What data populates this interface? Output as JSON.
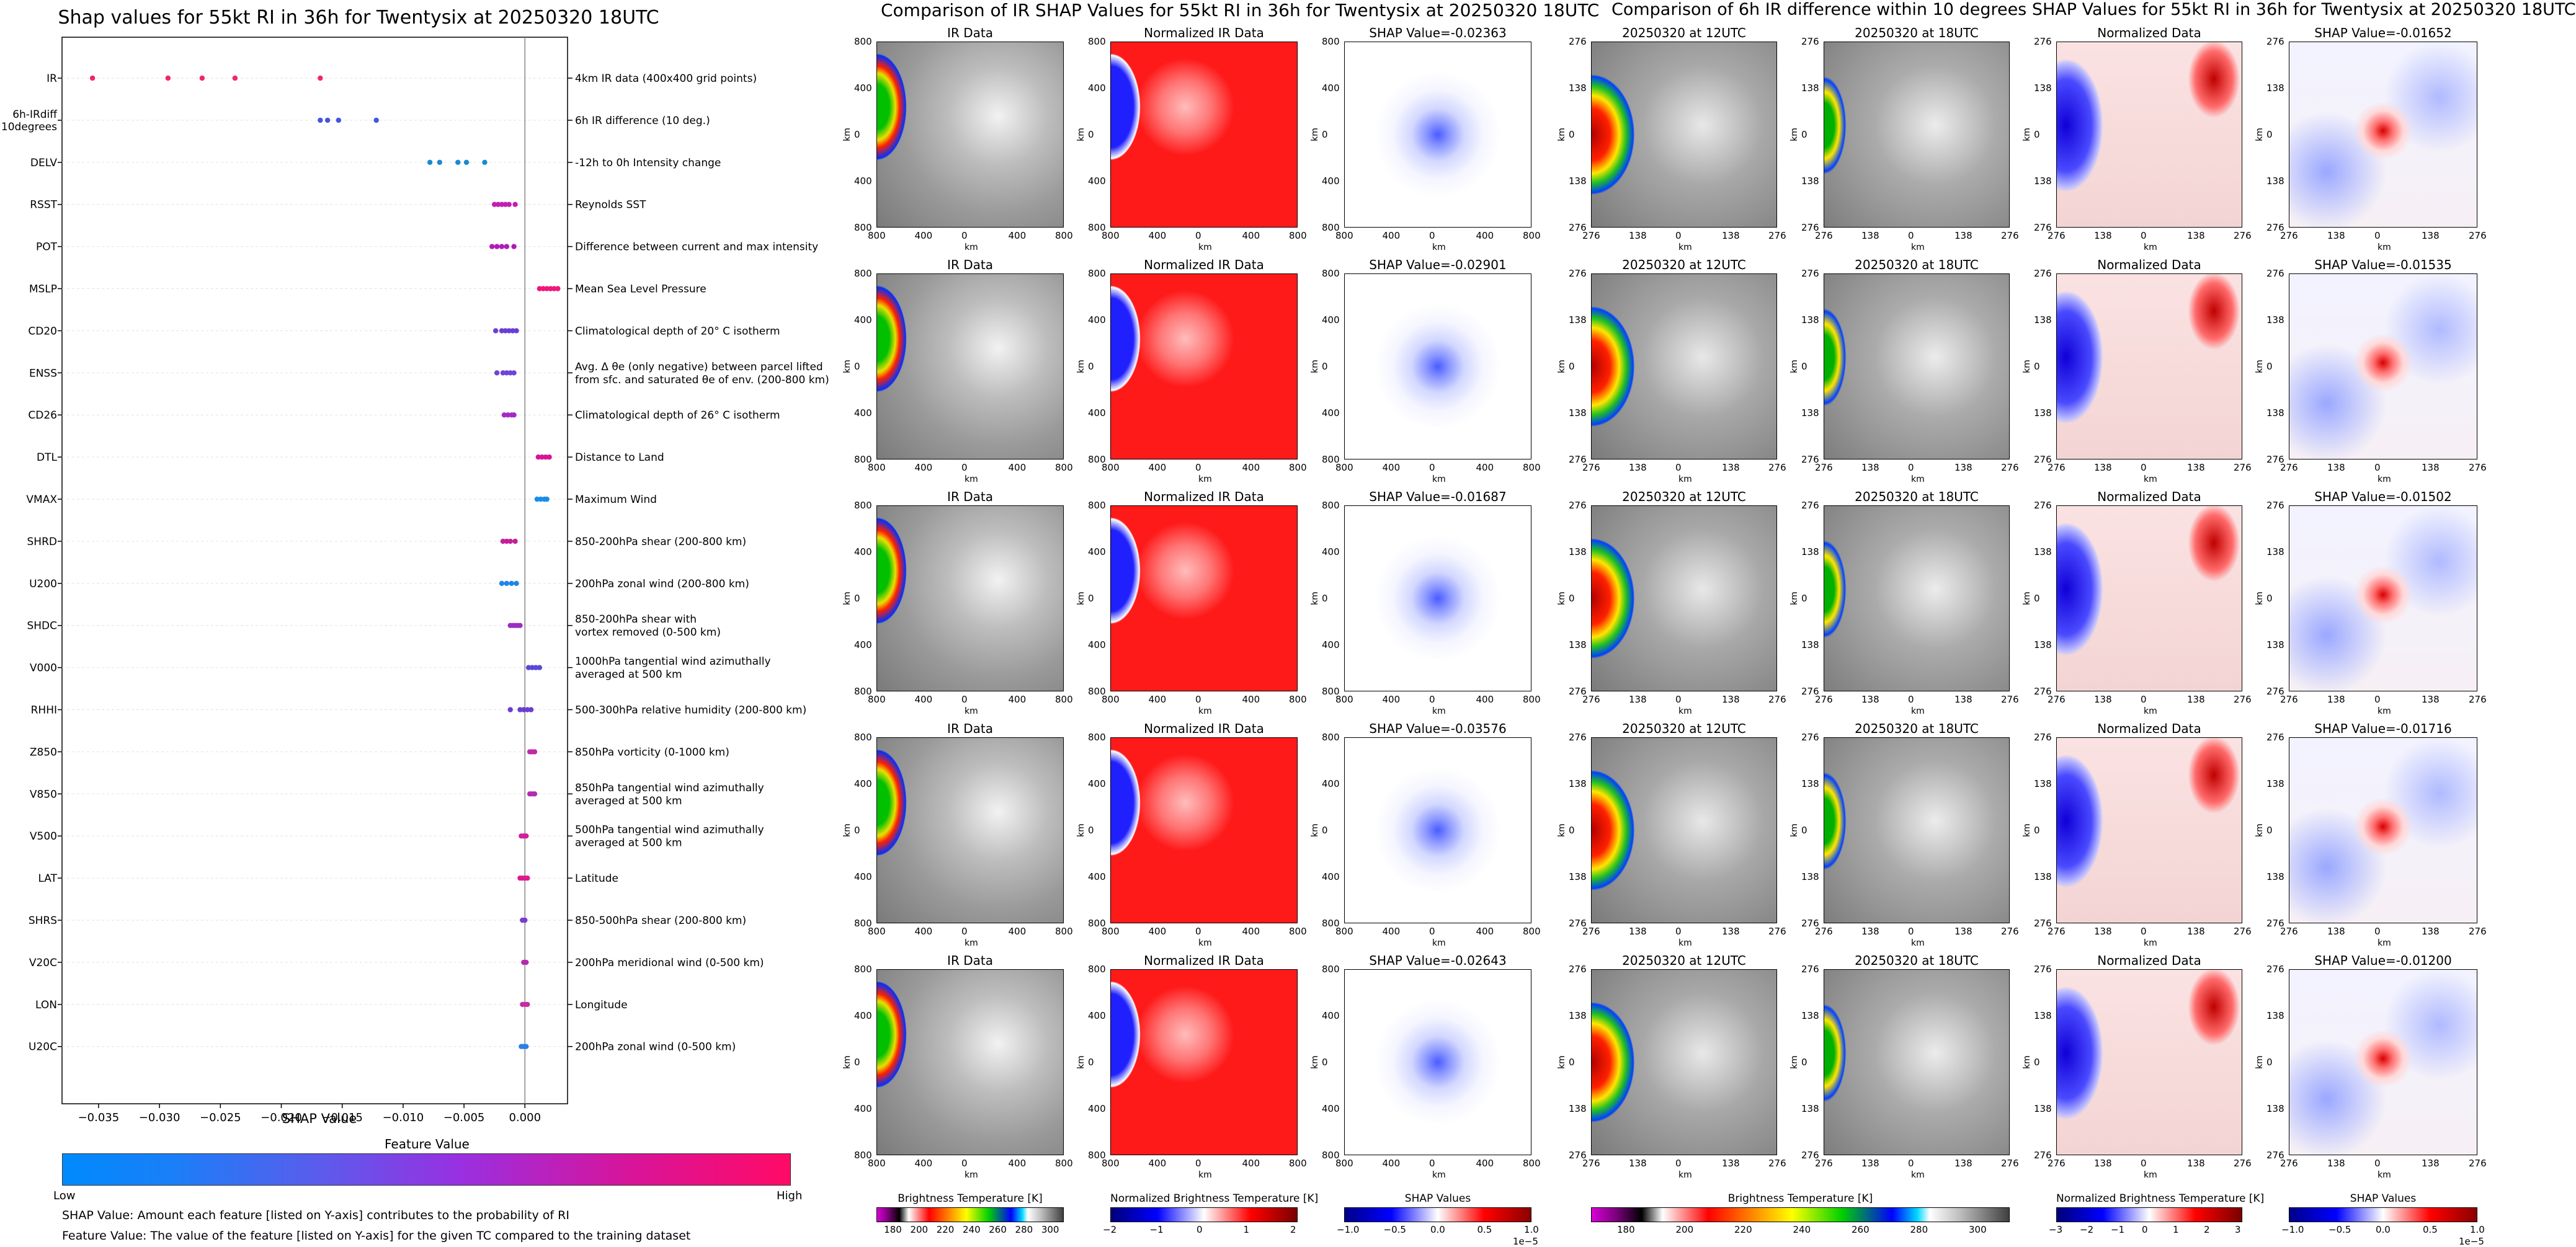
{
  "chart_data": [
    {
      "type": "scatter",
      "title": "Shap values for 55kt RI in 36h for Twentysix at 20250320 18UTC",
      "xlabel": "SHAP Value",
      "xlim": [
        -0.038,
        0.0035
      ],
      "xticks": [
        -0.035,
        -0.03,
        -0.025,
        -0.02,
        -0.015,
        -0.01,
        -0.005,
        0.0
      ],
      "xtick_labels": [
        "−0.035",
        "−0.030",
        "−0.025",
        "−0.020",
        "−0.015",
        "−0.010",
        "−0.005",
        "0.000"
      ],
      "features": [
        {
          "name": "IR",
          "desc": "4km IR data (400x400 grid points)",
          "color": "#f0266e",
          "points": [
            -0.0355,
            -0.0293,
            -0.0265,
            -0.0238,
            -0.0168
          ]
        },
        {
          "name": "6h-IRdiff\n10degrees",
          "desc": "6h IR difference (10 deg.)",
          "color": "#4455dd",
          "points": [
            -0.0168,
            -0.0162,
            -0.0153,
            -0.0122
          ]
        },
        {
          "name": "DELV",
          "desc": "-12h to 0h Intensity change",
          "color": "#1a8ad0",
          "points": [
            -0.0078,
            -0.007,
            -0.0055,
            -0.0048,
            -0.0033
          ]
        },
        {
          "name": "RSST",
          "desc": "Reynolds SST",
          "color": "#c21fb0",
          "points": [
            -0.0025,
            -0.0022,
            -0.0019,
            -0.0016,
            -0.0013,
            -0.0008
          ]
        },
        {
          "name": "POT",
          "desc": "Difference between current and max intensity",
          "color": "#b01cb5",
          "points": [
            -0.0027,
            -0.0023,
            -0.0019,
            -0.0015,
            -0.0009
          ]
        },
        {
          "name": "MSLP",
          "desc": "Mean Sea Level Pressure",
          "color": "#f0167a",
          "points": [
            0.0012,
            0.0015,
            0.0018,
            0.0021,
            0.0024,
            0.0027
          ]
        },
        {
          "name": "CD20",
          "desc": "Climatological depth of 20° C isotherm",
          "color": "#6a3ed6",
          "points": [
            -0.0024,
            -0.0019,
            -0.0016,
            -0.0013,
            -0.001,
            -0.0007
          ]
        },
        {
          "name": "ENSS",
          "desc": "Avg. Δ θe (only negative) between parcel lifted\nfrom sfc. and saturated θe of env. (200-800 km)",
          "color": "#6f44d8",
          "points": [
            -0.0023,
            -0.0018,
            -0.0015,
            -0.0012,
            -0.0009
          ]
        },
        {
          "name": "CD26",
          "desc": "Climatological depth of 26° C isotherm",
          "color": "#a52ac4",
          "points": [
            -0.0017,
            -0.0014,
            -0.0011,
            -0.0009
          ]
        },
        {
          "name": "DTL",
          "desc": "Distance to Land",
          "color": "#d81398",
          "points": [
            0.0011,
            0.0014,
            0.0017,
            0.002
          ]
        },
        {
          "name": "VMAX",
          "desc": "Maximum Wind",
          "color": "#1a8de8",
          "points": [
            0.001,
            0.0013,
            0.0016,
            0.0018
          ]
        },
        {
          "name": "SHRD",
          "desc": "850-200hPa shear (200-800 km)",
          "color": "#c41f9a",
          "points": [
            -0.0018,
            -0.0015,
            -0.0012,
            -0.0008
          ]
        },
        {
          "name": "U200",
          "desc": "200hPa zonal wind (200-800 km)",
          "color": "#1f86e6",
          "points": [
            -0.0019,
            -0.0015,
            -0.0011,
            -0.0007
          ]
        },
        {
          "name": "SHDC",
          "desc": "850-200hPa shear with\nvortex removed (0-500 km)",
          "color": "#9a2ec0",
          "points": [
            -0.0012,
            -0.001,
            -0.0008,
            -0.0006,
            -0.0004
          ]
        },
        {
          "name": "V000",
          "desc": "1000hPa tangential wind azimuthally\naveraged at 500 km",
          "color": "#5a48d8",
          "points": [
            0.0003,
            0.0006,
            0.0009,
            0.0012
          ]
        },
        {
          "name": "RHHI",
          "desc": "500-300hPa relative humidity (200-800 km)",
          "color": "#6a3ed0",
          "points": [
            -0.0012,
            -0.0004,
            -0.0001,
            0.0002,
            0.0005
          ]
        },
        {
          "name": "Z850",
          "desc": "850hPa vorticity (0-1000 km)",
          "color": "#c02aa8",
          "points": [
            0.0004,
            0.0006,
            0.0008
          ]
        },
        {
          "name": "V850",
          "desc": "850hPa tangential wind azimuthally\naveraged at 500 km",
          "color": "#b42ab0",
          "points": [
            0.0004,
            0.0006,
            0.0008
          ]
        },
        {
          "name": "V500",
          "desc": "500hPa tangential wind azimuthally\naveraged at 500 km",
          "color": "#d0209a",
          "points": [
            -0.0003,
            -0.0001,
            0.0001
          ]
        },
        {
          "name": "LAT",
          "desc": "Latitude",
          "color": "#e0188a",
          "points": [
            -0.0004,
            -0.0002,
            0.0,
            0.0002
          ]
        },
        {
          "name": "SHRS",
          "desc": "850-500hPa shear (200-800 km)",
          "color": "#7a3ad0",
          "points": [
            -0.0002,
            0.0
          ]
        },
        {
          "name": "V20C",
          "desc": "200hPa meridional wind (0-500 km)",
          "color": "#b42ab0",
          "points": [
            -0.0001,
            0.0001
          ]
        },
        {
          "name": "LON",
          "desc": "Longitude",
          "color": "#c82aa0",
          "points": [
            -0.0002,
            0.0,
            0.0002
          ]
        },
        {
          "name": "U20C",
          "desc": "200hPa zonal wind (0-500 km)",
          "color": "#2a80e8",
          "points": [
            -0.0003,
            -0.0001,
            0.0001
          ]
        }
      ]
    },
    {
      "type": "heatmap",
      "title": "Comparison of IR SHAP Values for 55kt RI in 36h for Twentysix at 20250320 18UTC",
      "column_titles": [
        "IR Data",
        "Normalized IR Data"
      ],
      "shap_titles": [
        "SHAP Value=-0.02363",
        "SHAP Value=-0.02901",
        "SHAP Value=-0.01687",
        "SHAP Value=-0.03576",
        "SHAP Value=-0.02643"
      ],
      "shap_values": [
        -0.02363,
        -0.02901,
        -0.01687,
        -0.03576,
        -0.02643
      ],
      "axis_ticks": [
        "800",
        "400",
        "0",
        "400",
        "800"
      ],
      "xlabel": "km",
      "ylabel": "km"
    },
    {
      "type": "heatmap",
      "title": "Comparison of 6h IR difference within 10 degrees SHAP Values for 55kt RI in 36h for Twentysix at 20250320 18UTC",
      "column_titles": [
        "20250320 at 12UTC",
        "20250320 at 18UTC",
        "Normalized Data"
      ],
      "shap_titles": [
        "SHAP Value=-0.01652",
        "SHAP Value=-0.01535",
        "SHAP Value=-0.01502",
        "SHAP Value=-0.01716",
        "SHAP Value=-0.01200"
      ],
      "shap_values": [
        -0.01652,
        -0.01535,
        -0.01502,
        -0.01716,
        -0.012
      ],
      "axis_ticks": [
        "276",
        "138",
        "0",
        "138",
        "276"
      ],
      "xlabel": "km",
      "ylabel": "km"
    }
  ],
  "legend": {
    "title": "Feature Value",
    "low": "Low",
    "high": "High"
  },
  "notes": {
    "shap": "SHAP Value: Amount each feature [listed on Y-axis] contributes to the probability of RI",
    "feature": "Feature Value: The value of the feature [listed on Y-axis] for the given TC compared to the training dataset"
  },
  "colorbars": {
    "ir_bt": {
      "label": "Brightness Temperature [K]",
      "ticks": [
        "180",
        "200",
        "220",
        "240",
        "260",
        "280",
        "300"
      ]
    },
    "ir_norm": {
      "label": "Normalized Brightness Temperature [K]",
      "ticks": [
        "−2",
        "−1",
        "0",
        "1",
        "2"
      ]
    },
    "ir_shap": {
      "label": "SHAP Values",
      "ticks": [
        "−1.0",
        "−0.5",
        "0.0",
        "0.5",
        "1.0"
      ],
      "exponent": "1e−5"
    },
    "d_bt": {
      "label": "Brightness Temperature [K]",
      "ticks": [
        "180",
        "200",
        "220",
        "240",
        "260",
        "280",
        "300"
      ]
    },
    "d_norm": {
      "label": "Normalized Brightness Temperature [K]",
      "ticks": [
        "−3",
        "−2",
        "−1",
        "0",
        "1",
        "2",
        "3"
      ]
    },
    "d_shap": {
      "label": "SHAP Values",
      "ticks": [
        "−1.0",
        "−0.5",
        "0.0",
        "0.5",
        "1.0"
      ],
      "exponent": "1e−5"
    }
  },
  "colors": {
    "low": "#008afc",
    "mid": "#9a2fe0",
    "high": "#ff0a66"
  }
}
